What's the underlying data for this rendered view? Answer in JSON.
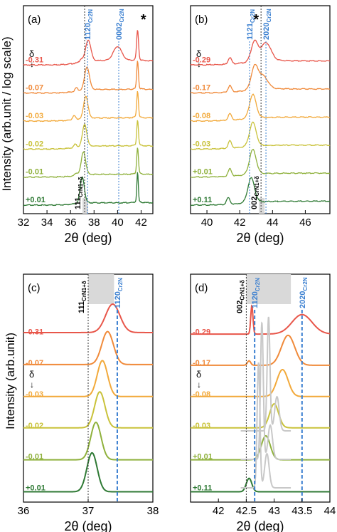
{
  "figure": {
    "ylabel_top": "Intensity (arb.unit / log scale)",
    "ylabel_bottom": "Intensity (arb.unit)",
    "xlabel": "2θ (deg)",
    "delta_symbol": "δ",
    "delta_arrow": "↓",
    "star": "*"
  },
  "chart_data": [
    {
      "id": "a",
      "panel_label": "(a)",
      "type": "line",
      "scale": "log",
      "xlim": [
        32,
        43
      ],
      "xticks": [
        32,
        34,
        36,
        38,
        40,
        42
      ],
      "series": [
        {
          "name": "-0.31",
          "color": "#e8564a",
          "peaks": [
            [
              37.5,
              2.6,
              0.22
            ],
            [
              40.0,
              1.7,
              0.35
            ],
            [
              41.7,
              3.6,
              0.08
            ],
            [
              36.9,
              0.35,
              0.12
            ]
          ],
          "rise": 0.5
        },
        {
          "name": "-0.07",
          "color": "#f08a3a",
          "peaks": [
            [
              37.4,
              2.8,
              0.2
            ],
            [
              41.7,
              3.4,
              0.07
            ],
            [
              36.5,
              0.4,
              0.12
            ]
          ],
          "rise": 0.45
        },
        {
          "name": "-0.03",
          "color": "#f2a93a",
          "peaks": [
            [
              37.3,
              2.7,
              0.18
            ],
            [
              41.7,
              3.2,
              0.07
            ],
            [
              36.3,
              0.5,
              0.12
            ]
          ],
          "rise": 0.4
        },
        {
          "name": "-0.02",
          "color": "#c9c23a",
          "peaks": [
            [
              37.2,
              2.7,
              0.18
            ],
            [
              41.7,
              3.1,
              0.07
            ],
            [
              36.4,
              0.4,
              0.12
            ]
          ],
          "rise": 0.4
        },
        {
          "name": "-0.01",
          "color": "#8fb13c",
          "peaks": [
            [
              37.1,
              2.8,
              0.18
            ],
            [
              41.7,
              3.2,
              0.07
            ],
            [
              36.5,
              0.3,
              0.12
            ]
          ],
          "rise": 0.35
        },
        {
          "name": "+0.01",
          "color": "#2f7a35",
          "peaks": [
            [
              37.0,
              3.2,
              0.17
            ],
            [
              41.7,
              3.6,
              0.06
            ]
          ],
          "rise": 0.3
        }
      ],
      "ref_lines": [
        {
          "x": 37.45,
          "label": "1120",
          "sub": "Cr2N",
          "color": "#3a7fd0"
        },
        {
          "x": 40.1,
          "label": "0002",
          "sub": "Cr2N",
          "color": "#3a7fd0"
        }
      ],
      "black_ref_line": {
        "x": 37.2,
        "label": "111",
        "sub": "CrN1+δ"
      }
    },
    {
      "id": "b",
      "panel_label": "(b)",
      "type": "line",
      "scale": "log",
      "xlim": [
        39,
        47.5
      ],
      "xticks": [
        40,
        42,
        44,
        46
      ],
      "series": [
        {
          "name": "-0.29",
          "color": "#e8564a",
          "peaks": [
            [
              42.9,
              2.4,
              0.2
            ],
            [
              43.6,
              2.2,
              0.3
            ],
            [
              41.4,
              0.8,
              0.1
            ]
          ],
          "rise": 0.5
        },
        {
          "name": "-0.17",
          "color": "#f08a3a",
          "peaks": [
            [
              42.9,
              2.6,
              0.2
            ],
            [
              43.4,
              1.6,
              0.3
            ],
            [
              41.4,
              0.8,
              0.1
            ]
          ],
          "rise": 0.5
        },
        {
          "name": "-0.08",
          "color": "#f2a93a",
          "peaks": [
            [
              42.8,
              2.9,
              0.2
            ],
            [
              41.4,
              0.8,
              0.1
            ]
          ],
          "rise": 0.5
        },
        {
          "name": "-0.03",
          "color": "#c9c23a",
          "peaks": [
            [
              42.8,
              2.9,
              0.2
            ],
            [
              41.4,
              0.9,
              0.1
            ]
          ],
          "rise": 0.5
        },
        {
          "name": "+0.01",
          "color": "#8fb13c",
          "peaks": [
            [
              42.8,
              3.0,
              0.2
            ],
            [
              41.4,
              0.9,
              0.1
            ]
          ],
          "rise": 0.5
        },
        {
          "name": "+0.11",
          "color": "#2f7a35",
          "peaks": [
            [
              42.7,
              3.0,
              0.2
            ],
            [
              41.3,
              0.8,
              0.1
            ]
          ],
          "rise": 0.5
        }
      ],
      "ref_lines": [
        {
          "x": 42.6,
          "label": "1121",
          "sub": "Cr2N",
          "color": "#3a7fd0"
        },
        {
          "x": 43.6,
          "label": "2020",
          "sub": "Cr2N",
          "color": "#3a7fd0"
        }
      ],
      "black_ref_line": {
        "x": 43.3,
        "label": "002",
        "sub": "CrN1+δ"
      }
    },
    {
      "id": "c",
      "panel_label": "(c)",
      "type": "line",
      "scale": "linear",
      "xlim": [
        36,
        38
      ],
      "xticks": [
        36,
        37,
        38
      ],
      "series": [
        {
          "name": "-0.31",
          "color": "#e8564a",
          "peaks": [
            [
              37.38,
              1.9,
              0.11
            ]
          ],
          "baseline": 0.3
        },
        {
          "name": "-0.07",
          "color": "#f08a3a",
          "peaks": [
            [
              37.3,
              2.2,
              0.09
            ]
          ],
          "baseline": 0.25
        },
        {
          "name": "-0.03",
          "color": "#f2a93a",
          "peaks": [
            [
              37.22,
              2.4,
              0.08
            ]
          ],
          "baseline": 0.2
        },
        {
          "name": "-0.02",
          "color": "#c9c23a",
          "peaks": [
            [
              37.18,
              2.4,
              0.08
            ]
          ],
          "baseline": 0.2
        },
        {
          "name": "-0.01",
          "color": "#8fb13c",
          "peaks": [
            [
              37.12,
              2.5,
              0.08
            ]
          ],
          "baseline": 0.15
        },
        {
          "name": "+0.01",
          "color": "#2f7a35",
          "peaks": [
            [
              37.06,
              2.6,
              0.08
            ]
          ],
          "baseline": 0.1
        }
      ],
      "ref_lines": [
        {
          "x": 37.45,
          "label": "1120",
          "sub": "Cr2N",
          "color": "#3a7fd0"
        }
      ],
      "black_ref_line": {
        "x": 37.0,
        "label": "111",
        "sub": "CrN1+δ"
      }
    },
    {
      "id": "d",
      "panel_label": "(d)",
      "type": "line",
      "scale": "linear",
      "xlim": [
        41.5,
        44
      ],
      "xticks": [
        42,
        42.5,
        43,
        43.5,
        44
      ],
      "series": [
        {
          "name": "-0.29",
          "color": "#e8564a",
          "peaks": [
            [
              42.6,
              1.9,
              0.02
            ],
            [
              43.5,
              1.3,
              0.18
            ]
          ],
          "baseline": 0.2
        },
        {
          "name": "-0.17",
          "color": "#f08a3a",
          "peaks": [
            [
              43.25,
              2.0,
              0.12
            ],
            [
              42.55,
              0.3,
              0.03
            ]
          ],
          "baseline": 0.2
        },
        {
          "name": "-0.08",
          "color": "#f2a93a",
          "peaks": [
            [
              43.15,
              1.8,
              0.1
            ]
          ],
          "baseline": 0.2
        },
        {
          "name": "-0.03",
          "color": "#c9c23a",
          "peaks": [
            [
              43.0,
              1.6,
              0.08
            ]
          ],
          "baseline": 0.2
        },
        {
          "name": "+0.01",
          "color": "#8fb13c",
          "peaks": [
            [
              42.85,
              1.6,
              0.08
            ]
          ],
          "baseline": 0.15
        },
        {
          "name": "+0.11",
          "color": "#2f7a35",
          "peaks": [
            [
              42.55,
              0.9,
              0.05
            ]
          ],
          "baseline": 0.1
        }
      ],
      "ref_lines": [
        {
          "x": 42.65,
          "label": "1120",
          "sub": "Cr2N",
          "color": "#3a7fd0"
        },
        {
          "x": 43.5,
          "label": "2020",
          "sub": "Cr2N",
          "color": "#3a7fd0"
        }
      ],
      "black_ref_line": {
        "x": 42.5,
        "label": "002",
        "sub": "CrN1+δ"
      }
    }
  ]
}
